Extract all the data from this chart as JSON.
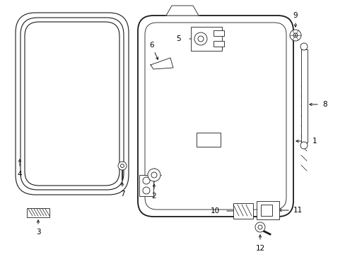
{
  "bg_color": "#ffffff",
  "line_color": "#1a1a1a",
  "text_color": "#000000",
  "lw_main": 1.3,
  "lw_thin": 0.8,
  "lw_detail": 0.6,
  "fontsize": 7.5
}
